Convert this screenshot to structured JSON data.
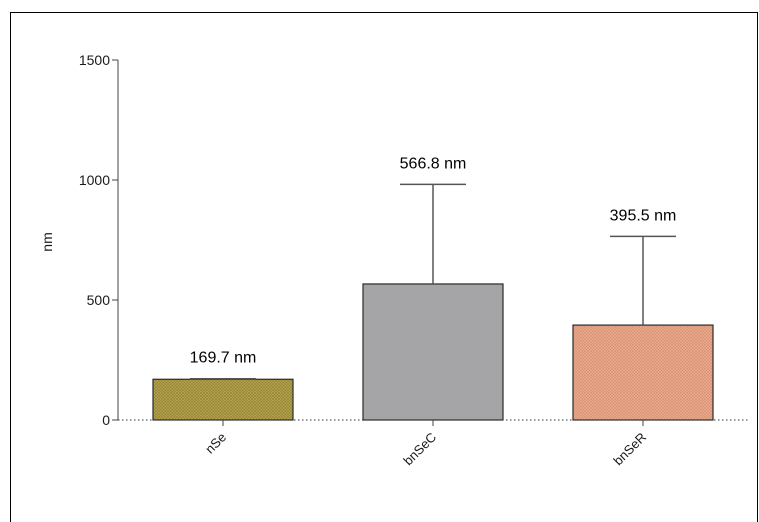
{
  "chart_data": {
    "type": "bar",
    "categories": [
      "nSe",
      "bnSeC",
      "bnSeR"
    ],
    "values": [
      169.7,
      566.8,
      395.5
    ],
    "errors_upper": [
      172,
      982,
      765
    ],
    "data_labels": [
      "169.7 nm",
      "566.8 nm",
      "395.5 nm"
    ],
    "colors": [
      "#b5a553",
      "#a5a5a8",
      "#e8a88c"
    ],
    "ylabel": "nm",
    "ylim": [
      0,
      1500
    ],
    "yticks": [
      0,
      500,
      1000,
      1500
    ],
    "ytick_labels": [
      "0",
      "500",
      "1000",
      "1500"
    ],
    "baseline": "dotted",
    "grid": false
  }
}
